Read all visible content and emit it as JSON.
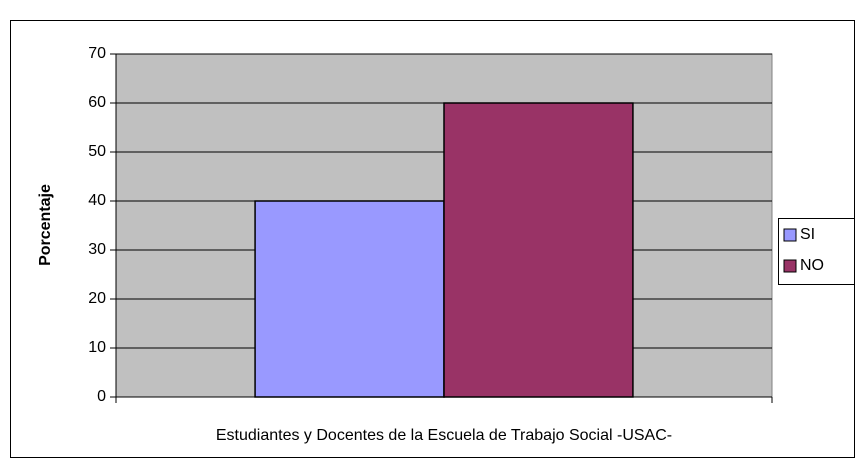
{
  "chart_data": {
    "type": "bar",
    "y_label": "Porcentaje",
    "categories": [
      "Estudiantes y Docentes de la Escuela de Trabajo Social -USAC-"
    ],
    "series": [
      {
        "name": "SI",
        "color": "#9999ff",
        "values": [
          40
        ]
      },
      {
        "name": "NO",
        "color": "#993366",
        "values": [
          60
        ]
      }
    ],
    "ylim": [
      0,
      70
    ],
    "yticks": [
      0,
      10,
      20,
      30,
      40,
      50,
      60,
      70
    ],
    "grid": true,
    "legend": "right"
  }
}
